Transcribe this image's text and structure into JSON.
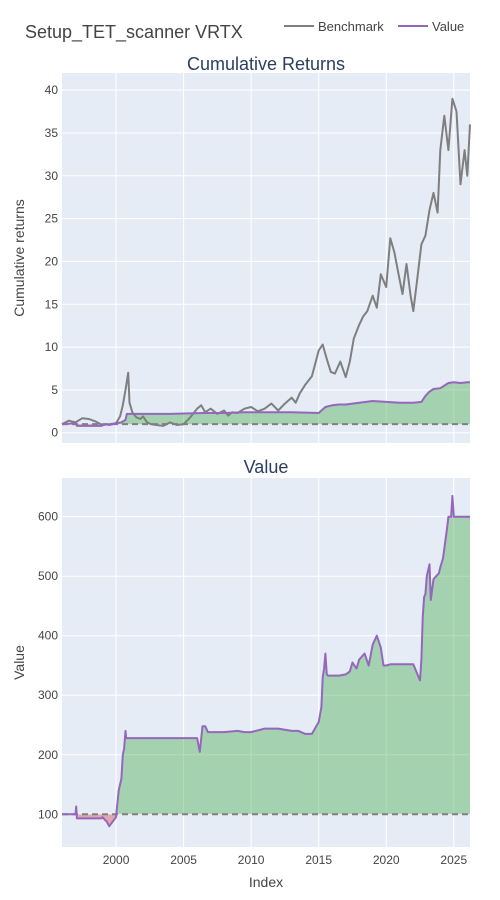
{
  "title": "Setup_TET_scanner VRTX",
  "legend": [
    {
      "name": "Benchmark",
      "color": "#7f7f7f"
    },
    {
      "name": "Value",
      "color": "#9467bd"
    }
  ],
  "colors": {
    "plot_bg": "#e5ecf6",
    "grid": "#ffffff",
    "fill_gain": "#2ca02c",
    "fill_loss": "#d62728",
    "baseline": "#808080"
  },
  "chart_data": [
    {
      "type": "line",
      "title": "Cumulative Returns",
      "xlabel": "",
      "ylabel": "Cumulative returns",
      "xlim": [
        1996,
        2026.2
      ],
      "ylim": [
        -1.2,
        42
      ],
      "xticks": [
        2000,
        2005,
        2010,
        2015,
        2020,
        2025
      ],
      "yticks": [
        0,
        5,
        10,
        15,
        20,
        25,
        30,
        35,
        40
      ],
      "baseline": 1,
      "grid": true,
      "legend_position": "top-right",
      "series": [
        {
          "name": "Benchmark",
          "x": [
            1996.0,
            1996.5,
            1997.0,
            1997.5,
            1998.0,
            1998.5,
            1999.0,
            1999.5,
            2000.0,
            2000.3,
            2000.5,
            2000.7,
            2000.9,
            2001.0,
            2001.2,
            2001.5,
            2001.8,
            2002.0,
            2002.3,
            2002.6,
            2003.0,
            2003.5,
            2004.0,
            2004.5,
            2005.0,
            2005.5,
            2006.0,
            2006.3,
            2006.6,
            2007.0,
            2007.5,
            2008.0,
            2008.3,
            2008.6,
            2009.0,
            2009.5,
            2010.0,
            2010.5,
            2011.0,
            2011.5,
            2012.0,
            2012.5,
            2013.0,
            2013.3,
            2013.6,
            2014.0,
            2014.5,
            2015.0,
            2015.3,
            2015.6,
            2015.9,
            2016.2,
            2016.6,
            2017.0,
            2017.3,
            2017.6,
            2018.0,
            2018.3,
            2018.6,
            2019.0,
            2019.3,
            2019.6,
            2020.0,
            2020.3,
            2020.6,
            2020.9,
            2021.2,
            2021.5,
            2021.8,
            2022.0,
            2022.3,
            2022.6,
            2022.9,
            2023.2,
            2023.5,
            2023.8,
            2024.0,
            2024.3,
            2024.6,
            2024.9,
            2025.2,
            2025.5,
            2025.8,
            2026.0,
            2026.2
          ],
          "y": [
            1.0,
            1.4,
            1.2,
            1.7,
            1.6,
            1.3,
            0.9,
            1.0,
            1.1,
            1.9,
            3.2,
            5.0,
            7.0,
            3.5,
            2.4,
            1.8,
            1.6,
            1.9,
            1.2,
            1.0,
            0.9,
            0.8,
            1.2,
            0.9,
            1.0,
            1.8,
            2.8,
            3.2,
            2.4,
            2.8,
            2.2,
            2.6,
            2.0,
            2.4,
            2.3,
            2.8,
            3.0,
            2.5,
            2.8,
            3.4,
            2.6,
            3.4,
            4.1,
            3.5,
            4.6,
            5.6,
            6.6,
            9.6,
            10.3,
            8.6,
            7.1,
            6.9,
            8.3,
            6.5,
            8.3,
            11.0,
            12.6,
            13.6,
            14.2,
            16.0,
            14.6,
            18.5,
            17.0,
            22.7,
            21.1,
            18.6,
            16.2,
            19.7,
            16.0,
            14.2,
            18.0,
            22.0,
            23.0,
            26.0,
            28.0,
            25.7,
            33.0,
            37.0,
            33.0,
            39.0,
            37.5,
            29.0,
            33.0,
            30.0,
            36.0
          ]
        },
        {
          "name": "Value",
          "x": [
            1996.0,
            1997.0,
            1997.1,
            1998.9,
            1999.2,
            1999.5,
            2000.0,
            2000.4,
            2000.7,
            2000.8,
            2001.0,
            2002.0,
            2004.0,
            2006.5,
            2008.0,
            2009.5,
            2011.0,
            2013.0,
            2015.0,
            2015.5,
            2016.0,
            2016.5,
            2017.0,
            2018.0,
            2019.0,
            2020.0,
            2021.0,
            2022.0,
            2022.6,
            2022.9,
            2023.2,
            2023.5,
            2024.0,
            2024.6,
            2025.0,
            2025.5,
            2026.0,
            2026.2
          ],
          "y": [
            1.0,
            1.1,
            0.8,
            0.8,
            1.0,
            0.9,
            1.1,
            1.2,
            1.5,
            2.2,
            2.2,
            2.2,
            2.2,
            2.3,
            2.3,
            2.4,
            2.4,
            2.4,
            2.3,
            3.0,
            3.2,
            3.3,
            3.3,
            3.5,
            3.7,
            3.6,
            3.5,
            3.5,
            3.6,
            4.3,
            4.8,
            5.1,
            5.2,
            5.8,
            5.9,
            5.8,
            5.9,
            5.9
          ]
        }
      ]
    },
    {
      "type": "area",
      "title": "Value",
      "xlabel": "Index",
      "ylabel": "Value",
      "xlim": [
        1996,
        2026.2
      ],
      "ylim": [
        45,
        665
      ],
      "xticks": [
        2000,
        2005,
        2010,
        2015,
        2020,
        2025
      ],
      "yticks": [
        100,
        200,
        300,
        400,
        500,
        600
      ],
      "baseline": 100,
      "grid": true,
      "series": [
        {
          "name": "Value",
          "x": [
            1996.0,
            1997.0,
            1997.05,
            1997.1,
            1998.9,
            1999.0,
            1999.2,
            1999.3,
            1999.4,
            1999.5,
            2000.0,
            2000.2,
            2000.4,
            2000.5,
            2000.6,
            2000.7,
            2000.75,
            2000.8,
            2000.9,
            2001.0,
            2002.0,
            2004.0,
            2006.0,
            2006.2,
            2006.4,
            2006.6,
            2006.8,
            2007.0,
            2008.0,
            2009.0,
            2009.5,
            2010.0,
            2011.0,
            2012.0,
            2013.0,
            2013.5,
            2014.0,
            2014.5,
            2015.0,
            2015.2,
            2015.3,
            2015.4,
            2015.5,
            2015.6,
            2015.7,
            2015.8,
            2016.0,
            2016.5,
            2017.0,
            2017.3,
            2017.5,
            2017.8,
            2018.0,
            2018.4,
            2018.7,
            2019.0,
            2019.3,
            2019.6,
            2019.8,
            2020.0,
            2020.3,
            2020.6,
            2021.0,
            2021.5,
            2022.0,
            2022.5,
            2022.6,
            2022.7,
            2022.8,
            2022.9,
            2023.0,
            2023.2,
            2023.3,
            2023.5,
            2023.7,
            2023.9,
            2024.0,
            2024.2,
            2024.5,
            2024.6,
            2024.8,
            2024.9,
            2025.0,
            2025.2,
            2025.5,
            2026.0,
            2026.2
          ],
          "y": [
            100,
            100,
            113,
            93,
            93,
            95,
            90,
            88,
            84,
            80,
            95,
            140,
            160,
            200,
            210,
            240,
            228,
            228,
            228,
            228,
            228,
            228,
            228,
            205,
            248,
            248,
            238,
            238,
            238,
            240,
            238,
            238,
            244,
            244,
            240,
            240,
            235,
            235,
            255,
            280,
            330,
            345,
            370,
            335,
            333,
            333,
            333,
            333,
            335,
            340,
            355,
            345,
            360,
            370,
            350,
            385,
            400,
            380,
            350,
            350,
            352,
            352,
            352,
            352,
            352,
            325,
            360,
            430,
            465,
            470,
            500,
            520,
            460,
            495,
            500,
            505,
            515,
            530,
            580,
            600,
            600,
            635,
            600,
            600,
            600,
            600,
            600
          ]
        }
      ]
    }
  ]
}
